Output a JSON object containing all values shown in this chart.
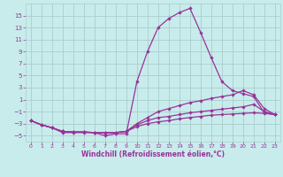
{
  "xlabel": "Windchill (Refroidissement éolien,°C)",
  "background_color": "#c8ecec",
  "grid_color": "#aacccc",
  "line_color": "#993399",
  "xlim": [
    -0.5,
    23.5
  ],
  "ylim": [
    -6,
    17
  ],
  "xticks": [
    0,
    1,
    2,
    3,
    4,
    5,
    6,
    7,
    8,
    9,
    10,
    11,
    12,
    13,
    14,
    15,
    16,
    17,
    18,
    19,
    20,
    21,
    22,
    23
  ],
  "yticks": [
    -5,
    -3,
    -1,
    1,
    3,
    5,
    7,
    9,
    11,
    13,
    15
  ],
  "line1_x": [
    0,
    1,
    2,
    3,
    4,
    5,
    6,
    7,
    8,
    9,
    10,
    11,
    12,
    13,
    14,
    15,
    16,
    17,
    18,
    19,
    20,
    21,
    22,
    23
  ],
  "line1_y": [
    -2.5,
    -3.2,
    -3.7,
    -4.5,
    -4.5,
    -4.5,
    -4.5,
    -5.0,
    -4.7,
    -4.7,
    4.0,
    9.0,
    13.0,
    14.5,
    15.5,
    16.2,
    12.2,
    8.0,
    4.0,
    2.5,
    2.0,
    1.5,
    -1.2,
    -1.5
  ],
  "line2_x": [
    0,
    1,
    2,
    3,
    4,
    5,
    6,
    7,
    8,
    9,
    10,
    11,
    12,
    13,
    14,
    15,
    16,
    17,
    18,
    19,
    20,
    21,
    22,
    23
  ],
  "line2_y": [
    -2.5,
    -3.2,
    -3.7,
    -4.3,
    -4.4,
    -4.4,
    -4.5,
    -4.5,
    -4.5,
    -4.3,
    -3.0,
    -2.0,
    -1.0,
    -0.5,
    0.0,
    0.5,
    0.8,
    1.2,
    1.5,
    1.8,
    2.5,
    1.8,
    -0.5,
    -1.5
  ],
  "line3_x": [
    0,
    1,
    2,
    3,
    4,
    5,
    6,
    7,
    8,
    9,
    10,
    11,
    12,
    13,
    14,
    15,
    16,
    17,
    18,
    19,
    20,
    21,
    22,
    23
  ],
  "line3_y": [
    -2.5,
    -3.2,
    -3.7,
    -4.3,
    -4.4,
    -4.4,
    -4.5,
    -4.5,
    -4.5,
    -4.3,
    -3.2,
    -2.5,
    -2.0,
    -1.8,
    -1.5,
    -1.2,
    -1.0,
    -0.8,
    -0.6,
    -0.4,
    -0.2,
    0.2,
    -1.0,
    -1.5
  ],
  "line4_x": [
    0,
    1,
    2,
    3,
    4,
    5,
    6,
    7,
    8,
    9,
    10,
    11,
    12,
    13,
    14,
    15,
    16,
    17,
    18,
    19,
    20,
    21,
    22,
    23
  ],
  "line4_y": [
    -2.5,
    -3.2,
    -3.7,
    -4.3,
    -4.4,
    -4.4,
    -4.5,
    -4.5,
    -4.5,
    -4.3,
    -3.5,
    -3.0,
    -2.7,
    -2.5,
    -2.2,
    -2.0,
    -1.8,
    -1.6,
    -1.5,
    -1.4,
    -1.3,
    -1.2,
    -1.3,
    -1.5
  ]
}
